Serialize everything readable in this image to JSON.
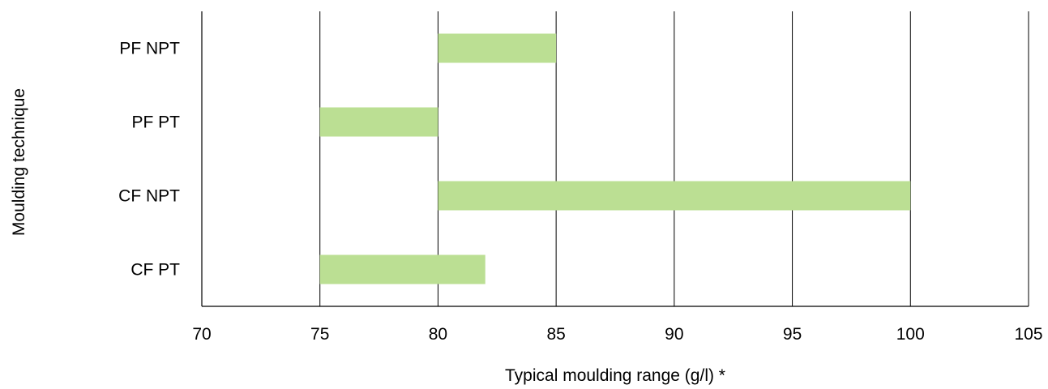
{
  "chart_data": {
    "type": "bar",
    "orientation": "horizontal-floating",
    "title": "",
    "xlabel": "Typical moulding range (g/l) *",
    "ylabel": "Moulding technique",
    "xlim": [
      70,
      105
    ],
    "x_ticks": [
      70,
      75,
      80,
      85,
      90,
      95,
      100,
      105
    ],
    "grid": "vertical",
    "bar_color": "#BBDF93",
    "categories": [
      "PF NPT",
      "PF PT",
      "CF NPT",
      "CF PT"
    ],
    "ranges": [
      {
        "category": "PF NPT",
        "start": 80,
        "end": 85
      },
      {
        "category": "PF PT",
        "start": 75,
        "end": 80
      },
      {
        "category": "CF NPT",
        "start": 80,
        "end": 100
      },
      {
        "category": "CF PT",
        "start": 75,
        "end": 82
      }
    ]
  }
}
